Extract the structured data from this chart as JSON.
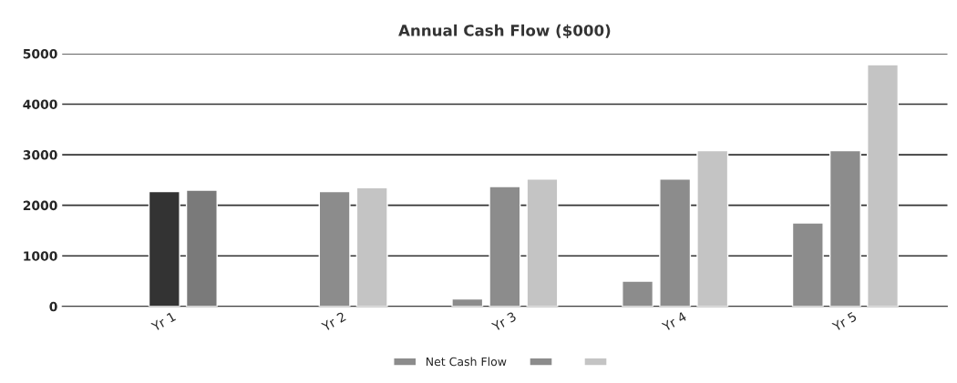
{
  "chart_data": {
    "type": "bar",
    "title": "Annual Cash Flow ($000)",
    "categories": [
      "Yr 1",
      "Yr 2",
      "Yr 3",
      "Yr 4",
      "Yr 5"
    ],
    "series": [
      {
        "name": "Net Cash Flow",
        "color": "#8c8c8c",
        "values": [
          null,
          null,
          150,
          500,
          1650
        ]
      },
      {
        "color": "#8c8c8c",
        "colors": [
          "#333333",
          "#8c8c8c",
          "#8c8c8c",
          "#8c8c8c",
          "#8c8c8c"
        ],
        "values": [
          2270,
          2270,
          2370,
          2520,
          3080
        ]
      },
      {
        "color": "#c4c4c4",
        "colors": [
          "#7a7a7a",
          "#c4c4c4",
          "#c4c4c4",
          "#c4c4c4",
          "#c4c4c4"
        ],
        "values": [
          2300,
          2350,
          2520,
          3080,
          4780
        ]
      }
    ],
    "ylim": [
      0,
      5000
    ],
    "yticks": [
      0,
      1000,
      2000,
      3000,
      4000,
      5000
    ],
    "grid": "y",
    "legend": "bottom"
  }
}
